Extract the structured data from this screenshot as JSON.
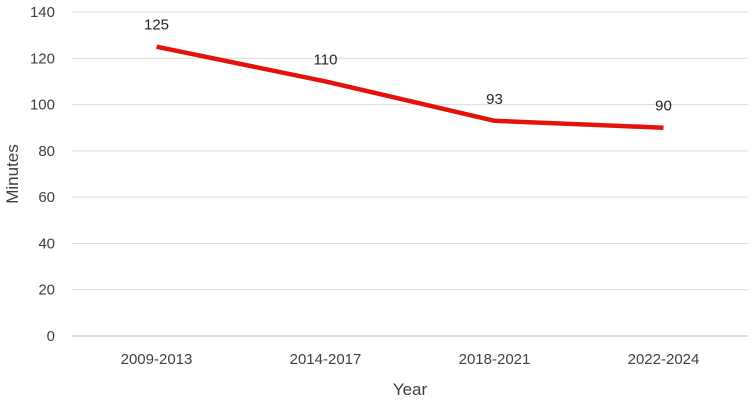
{
  "chart_data": {
    "type": "line",
    "title": "",
    "xlabel": "Year",
    "ylabel": "Minutes",
    "categories": [
      "2009-2013",
      "2014-2017",
      "2018-2021",
      "2022-2024"
    ],
    "series": [
      {
        "values": [
          125,
          110,
          93,
          90
        ],
        "color": "#e3120b"
      }
    ],
    "ylim": [
      0,
      140
    ],
    "yticks": [
      "0",
      "20",
      "40",
      "60",
      "80",
      "100",
      "120",
      "140"
    ],
    "grid": "horizontal",
    "legend": "none",
    "data_labels": true
  }
}
